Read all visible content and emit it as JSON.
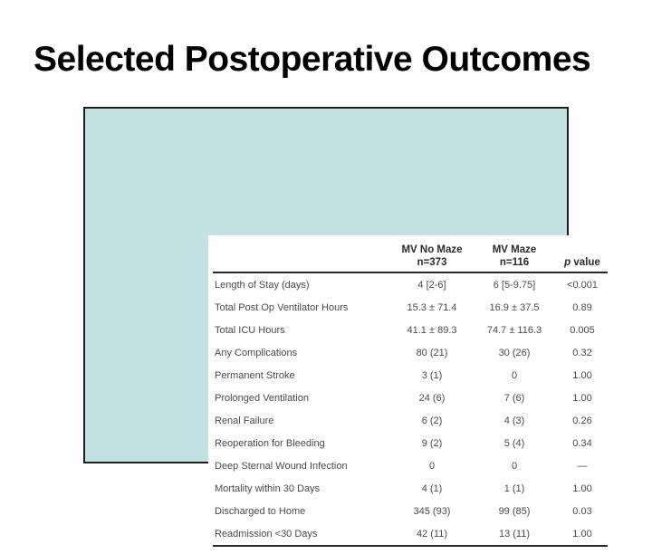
{
  "slide": {
    "title": "Selected Postoperative Outcomes"
  },
  "table": {
    "columns": [
      {
        "line1": "MV No Maze",
        "line2": "n=373"
      },
      {
        "line1": "MV Maze",
        "line2": "n=116"
      }
    ],
    "p_header": {
      "italic": "p",
      "rest": "value"
    },
    "rows": [
      {
        "label": "Length of Stay (days)",
        "no_maze": "4 [2-6]",
        "maze": "6 [5-9.75]",
        "p": "<0.001"
      },
      {
        "label": "Total Post Op Ventilator Hours",
        "no_maze": "15.3 ± 71.4",
        "maze": "16.9 ± 37.5",
        "p": "0.89"
      },
      {
        "label": "Total ICU Hours",
        "no_maze": "41.1 ± 89.3",
        "maze": "74.7 ± 116.3",
        "p": "0.005"
      },
      {
        "label": "Any Complications",
        "no_maze": "80 (21)",
        "maze": "30 (26)",
        "p": "0.32"
      },
      {
        "label": "Permanent Stroke",
        "no_maze": "3 (1)",
        "maze": "0",
        "p": "1.00"
      },
      {
        "label": "Prolonged Ventilation",
        "no_maze": "24 (6)",
        "maze": "7 (6)",
        "p": "1.00"
      },
      {
        "label": "Renal Failure",
        "no_maze": "6 (2)",
        "maze": "4 (3)",
        "p": "0.26"
      },
      {
        "label": "Reoperation for Bleeding",
        "no_maze": "9 (2)",
        "maze": "5 (4)",
        "p": "0.34"
      },
      {
        "label": "Deep Sternal Wound Infection",
        "no_maze": "0",
        "maze": "0",
        "p": "—"
      },
      {
        "label": "Mortality within 30 Days",
        "no_maze": "4 (1)",
        "maze": "1 (1)",
        "p": "1.00"
      },
      {
        "label": "Discharged to Home",
        "no_maze": "345 (93)",
        "maze": "99 (85)",
        "p": "0.03"
      },
      {
        "label": "Readmission <30 Days",
        "no_maze": "42 (11)",
        "maze": "13 (11)",
        "p": "1.00"
      }
    ]
  },
  "colors": {
    "panel_bg": "#c2e1e3",
    "panel_border": "#1f1f1f",
    "rule": "#2a2a2a",
    "title_text": "#000000",
    "table_text": "#4a4a4a"
  }
}
